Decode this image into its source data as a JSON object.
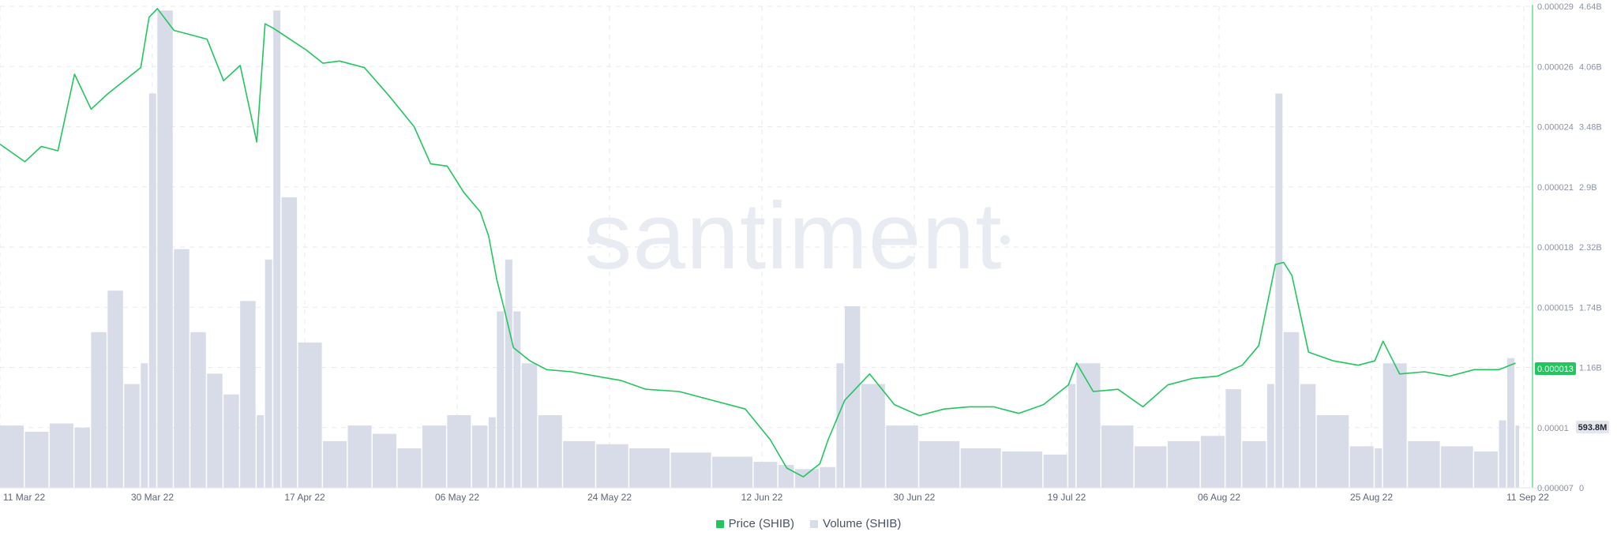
{
  "watermark": "santiment",
  "colors": {
    "price": "#22c55e",
    "volume": "#d8dbe8",
    "grid": "#e6e9ef"
  },
  "legend": {
    "price_label": "Price (SHIB)",
    "volume_label": "Volume (SHIB)"
  },
  "badges": {
    "price_current": "0.000013",
    "volume_current": "593.8M"
  },
  "chart_data": {
    "type": "line",
    "x_range": [
      "2022-03-11",
      "2022-09-11"
    ],
    "x_ticks": [
      "11 Mar 22",
      "30 Mar 22",
      "17 Apr 22",
      "06 May 22",
      "24 May 22",
      "12 Jun 22",
      "30 Jun 22",
      "19 Jul 22",
      "06 Aug 22",
      "25 Aug 22",
      "11 Sep 22"
    ],
    "y_price_ticks": [
      "0.000007",
      "0.00001",
      "0.000013",
      "0.000015",
      "0.000018",
      "0.000021",
      "0.000024",
      "0.000026",
      "0.000029"
    ],
    "y_volume_ticks": [
      "0",
      "593.8M",
      "1.16B",
      "1.74B",
      "2.32B",
      "2.9B",
      "3.48B",
      "4.06B",
      "4.64B"
    ],
    "y_price_range": [
      7e-06,
      2.9e-05
    ],
    "y_volume_range": [
      0,
      4640000000
    ],
    "grid": true,
    "legend_position": "bottom-center",
    "series": [
      {
        "name": "Price (SHIB)",
        "axis": "left",
        "x": [
          "2022-03-11",
          "2022-03-14",
          "2022-03-16",
          "2022-03-18",
          "2022-03-20",
          "2022-03-22",
          "2022-03-24",
          "2022-03-26",
          "2022-03-28",
          "2022-03-29",
          "2022-03-30",
          "2022-04-01",
          "2022-04-03",
          "2022-04-05",
          "2022-04-07",
          "2022-04-09",
          "2022-04-11",
          "2022-04-12",
          "2022-04-13",
          "2022-04-15",
          "2022-04-17",
          "2022-04-19",
          "2022-04-21",
          "2022-04-24",
          "2022-04-27",
          "2022-04-30",
          "2022-05-02",
          "2022-05-04",
          "2022-05-06",
          "2022-05-08",
          "2022-05-09",
          "2022-05-10",
          "2022-05-11",
          "2022-05-12",
          "2022-05-14",
          "2022-05-16",
          "2022-05-19",
          "2022-05-22",
          "2022-05-25",
          "2022-05-28",
          "2022-06-01",
          "2022-06-05",
          "2022-06-09",
          "2022-06-12",
          "2022-06-14",
          "2022-06-16",
          "2022-06-18",
          "2022-06-19",
          "2022-06-21",
          "2022-06-24",
          "2022-06-27",
          "2022-06-30",
          "2022-07-03",
          "2022-07-06",
          "2022-07-09",
          "2022-07-12",
          "2022-07-15",
          "2022-07-18",
          "2022-07-19",
          "2022-07-21",
          "2022-07-24",
          "2022-07-27",
          "2022-07-30",
          "2022-08-02",
          "2022-08-05",
          "2022-08-08",
          "2022-08-10",
          "2022-08-12",
          "2022-08-13",
          "2022-08-14",
          "2022-08-16",
          "2022-08-19",
          "2022-08-22",
          "2022-08-24",
          "2022-08-25",
          "2022-08-27",
          "2022-08-30",
          "2022-09-02",
          "2022-09-05",
          "2022-09-08",
          "2022-09-10"
        ],
        "values": [
          2.27e-05,
          2.19e-05,
          2.26e-05,
          2.24e-05,
          2.59e-05,
          2.43e-05,
          2.5e-05,
          2.56e-05,
          2.62e-05,
          2.85e-05,
          2.89e-05,
          2.79e-05,
          2.77e-05,
          2.75e-05,
          2.56e-05,
          2.63e-05,
          2.28e-05,
          2.82e-05,
          2.8e-05,
          2.75e-05,
          2.7e-05,
          2.64e-05,
          2.65e-05,
          2.62e-05,
          2.49e-05,
          2.35e-05,
          2.18e-05,
          2.17e-05,
          2.05e-05,
          1.96e-05,
          1.85e-05,
          1.65e-05,
          1.5e-05,
          1.34e-05,
          1.28e-05,
          1.24e-05,
          1.23e-05,
          1.21e-05,
          1.19e-05,
          1.15e-05,
          1.14e-05,
          1.1e-05,
          1.06e-05,
          9.2e-06,
          7.9e-06,
          7.5e-06,
          8.1e-06,
          9.2e-06,
          1.1e-05,
          1.22e-05,
          1.08e-05,
          1.03e-05,
          1.06e-05,
          1.07e-05,
          1.07e-05,
          1.04e-05,
          1.08e-05,
          1.17e-05,
          1.27e-05,
          1.14e-05,
          1.15e-05,
          1.07e-05,
          1.17e-05,
          1.2e-05,
          1.21e-05,
          1.26e-05,
          1.35e-05,
          1.72e-05,
          1.73e-05,
          1.67e-05,
          1.32e-05,
          1.28e-05,
          1.26e-05,
          1.28e-05,
          1.37e-05,
          1.22e-05,
          1.23e-05,
          1.21e-05,
          1.24e-05,
          1.24e-05,
          1.27e-05
        ]
      },
      {
        "name": "Volume (SHIB)",
        "axis": "right",
        "x": [
          "2022-03-11",
          "2022-03-14",
          "2022-03-17",
          "2022-03-20",
          "2022-03-22",
          "2022-03-24",
          "2022-03-26",
          "2022-03-28",
          "2022-03-29",
          "2022-03-30",
          "2022-04-01",
          "2022-04-03",
          "2022-04-05",
          "2022-04-07",
          "2022-04-09",
          "2022-04-11",
          "2022-04-12",
          "2022-04-13",
          "2022-04-14",
          "2022-04-16",
          "2022-04-19",
          "2022-04-22",
          "2022-04-25",
          "2022-04-28",
          "2022-05-01",
          "2022-05-04",
          "2022-05-07",
          "2022-05-09",
          "2022-05-10",
          "2022-05-11",
          "2022-05-12",
          "2022-05-13",
          "2022-05-15",
          "2022-05-18",
          "2022-05-22",
          "2022-05-26",
          "2022-05-31",
          "2022-06-05",
          "2022-06-10",
          "2022-06-13",
          "2022-06-15",
          "2022-06-18",
          "2022-06-20",
          "2022-06-21",
          "2022-06-23",
          "2022-06-26",
          "2022-06-30",
          "2022-07-05",
          "2022-07-10",
          "2022-07-15",
          "2022-07-18",
          "2022-07-19",
          "2022-07-22",
          "2022-07-26",
          "2022-07-30",
          "2022-08-03",
          "2022-08-06",
          "2022-08-08",
          "2022-08-11",
          "2022-08-12",
          "2022-08-13",
          "2022-08-15",
          "2022-08-17",
          "2022-08-21",
          "2022-08-24",
          "2022-08-25",
          "2022-08-28",
          "2022-09-01",
          "2022-09-05",
          "2022-09-08",
          "2022-09-09",
          "2022-09-10"
        ],
        "values": [
          600000000,
          540000000,
          620000000,
          580000000,
          1500000000,
          1900000000,
          1000000000,
          1200000000,
          3800000000,
          4600000000,
          2300000000,
          1500000000,
          1100000000,
          900000000,
          1800000000,
          700000000,
          2200000000,
          4600000000,
          2800000000,
          1400000000,
          450000000,
          600000000,
          520000000,
          380000000,
          600000000,
          700000000,
          600000000,
          680000000,
          1700000000,
          2200000000,
          1700000000,
          1200000000,
          700000000,
          450000000,
          420000000,
          380000000,
          340000000,
          300000000,
          250000000,
          220000000,
          180000000,
          200000000,
          1200000000,
          1750000000,
          1000000000,
          600000000,
          450000000,
          380000000,
          350000000,
          320000000,
          1000000000,
          1200000000,
          600000000,
          400000000,
          450000000,
          500000000,
          950000000,
          450000000,
          1000000000,
          3800000000,
          1500000000,
          1000000000,
          700000000,
          400000000,
          380000000,
          1200000000,
          450000000,
          400000000,
          350000000,
          650000000,
          1250000000,
          600000000
        ]
      }
    ]
  }
}
